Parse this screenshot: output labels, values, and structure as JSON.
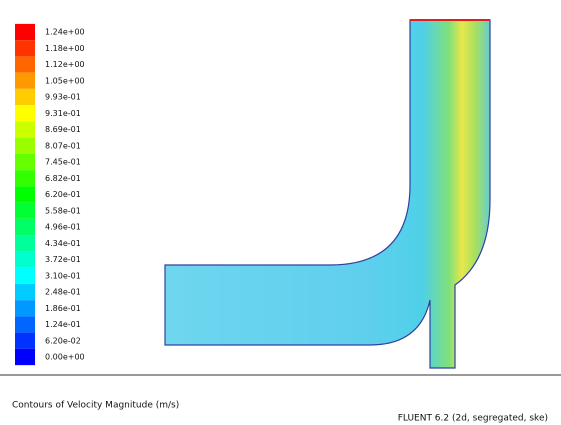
{
  "colorbar": {
    "labels": [
      "1.24e+00",
      "1.18e+00",
      "1.12e+00",
      "1.05e+00",
      "9.93e-01",
      "9.31e-01",
      "8.69e-01",
      "8.07e-01",
      "7.45e-01",
      "6.82e-01",
      "6.20e-01",
      "5.58e-01",
      "4.96e-01",
      "4.34e-01",
      "3.72e-01",
      "3.10e-01",
      "2.48e-01",
      "1.86e-01",
      "1.24e-01",
      "6.20e-02",
      "0.00e+00"
    ]
  },
  "footer": {
    "title": "Contours of Velocity Magnitude (m/s)",
    "solver": "FLUENT 6.2 (2d, segregated, ske)"
  }
}
